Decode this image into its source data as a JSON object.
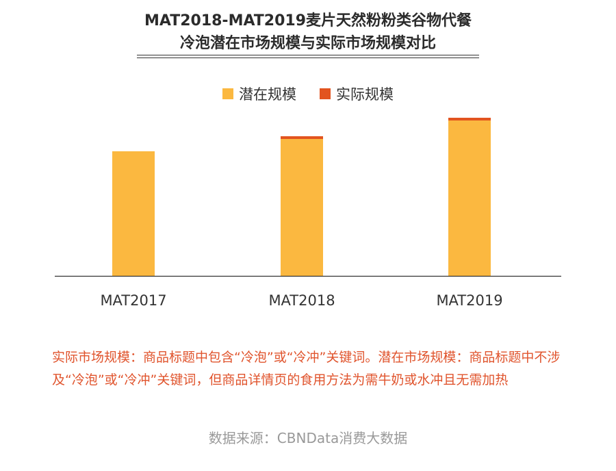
{
  "title": {
    "line1": "MAT2018-MAT2019麦片天然粉粉类谷物代餐",
    "line2": "冷泡潜在市场规模与实际市场规模对比"
  },
  "colors": {
    "potential": "#fbb840",
    "actual": "#e2541f",
    "axis": "#333333",
    "footnote": "#e0542d",
    "source": "#999999"
  },
  "chart_data": {
    "type": "bar",
    "stacked": true,
    "categories": [
      "MAT2017",
      "MAT2018",
      "MAT2019"
    ],
    "series": [
      {
        "name": "潜在规模",
        "values": [
          182,
          200,
          227
        ]
      },
      {
        "name": "实际规模",
        "values": [
          0,
          4,
          4
        ]
      }
    ],
    "ylim": [
      0,
      235
    ],
    "legend_position": "top-center",
    "grid": false,
    "xlabel": "",
    "ylabel": ""
  },
  "footnote": "实际市场规模：商品标题中包含“冷泡”或“冷冲”关键词。潜在市场规模：商品标题中不涉及“冷泡”或“冷冲”关键词，但商品详情页的食用方法为需牛奶或水冲且无需加热",
  "source": "数据来源：CBNData消费大数据"
}
